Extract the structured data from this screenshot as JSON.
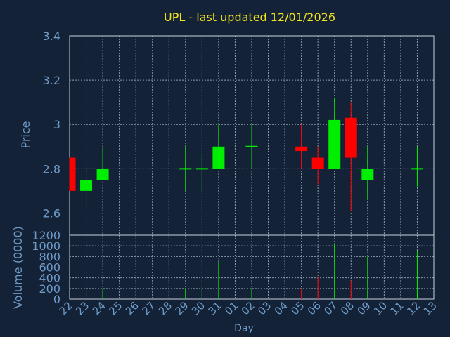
{
  "colors": {
    "background": "#132236",
    "text": "#6f9bc8",
    "title": "#f2e21f",
    "grid": "#8c9bb0",
    "axis": "#c8d2de",
    "up": "#00ee00",
    "down": "#ff0000"
  },
  "chart_data": [
    {
      "type": "candlestick",
      "title": "UPL - last updated 12/01/2026",
      "ylabel": "Price",
      "ylim": [
        2.5,
        3.4
      ],
      "yticks": [
        "2.6",
        "2.8",
        "3",
        "3.2",
        "3.4"
      ],
      "grid": true,
      "x": [
        "22",
        "23",
        "24",
        "25",
        "26",
        "27",
        "28",
        "29",
        "30",
        "31",
        "01",
        "02",
        "03",
        "04",
        "05",
        "06",
        "07",
        "08",
        "09",
        "10",
        "11",
        "12",
        "13"
      ],
      "candles": [
        {
          "x": "22",
          "open": 2.85,
          "high": 2.85,
          "low": 2.7,
          "close": 2.7
        },
        {
          "x": "23",
          "open": 2.7,
          "high": 2.8,
          "low": 2.63,
          "close": 2.75
        },
        {
          "x": "24",
          "open": 2.75,
          "high": 2.9,
          "low": 2.75,
          "close": 2.8
        },
        {
          "x": "29",
          "open": 2.8,
          "high": 2.9,
          "low": 2.7,
          "close": 2.8
        },
        {
          "x": "30",
          "open": 2.8,
          "high": 2.87,
          "low": 2.7,
          "close": 2.8
        },
        {
          "x": "31",
          "open": 2.8,
          "high": 3.0,
          "low": 2.8,
          "close": 2.9
        },
        {
          "x": "02",
          "open": 2.9,
          "high": 3.0,
          "low": 2.8,
          "close": 2.9
        },
        {
          "x": "05",
          "open": 2.9,
          "high": 3.0,
          "low": 2.8,
          "close": 2.88
        },
        {
          "x": "06",
          "open": 2.85,
          "high": 2.9,
          "low": 2.73,
          "close": 2.8
        },
        {
          "x": "07",
          "open": 2.8,
          "high": 3.12,
          "low": 2.8,
          "close": 3.02
        },
        {
          "x": "08",
          "open": 3.03,
          "high": 3.1,
          "low": 2.61,
          "close": 2.85
        },
        {
          "x": "09",
          "open": 2.75,
          "high": 2.9,
          "low": 2.66,
          "close": 2.8
        },
        {
          "x": "12",
          "open": 2.8,
          "high": 2.9,
          "low": 2.72,
          "close": 2.8
        }
      ]
    },
    {
      "type": "bar",
      "xlabel": "Day",
      "ylabel": "Volume (0000)",
      "ylim": [
        0,
        1200
      ],
      "yticks": [
        "0",
        "200",
        "400",
        "600",
        "800",
        "1000",
        "1200"
      ],
      "grid": true,
      "categories": [
        "22",
        "23",
        "24",
        "25",
        "26",
        "27",
        "28",
        "29",
        "30",
        "31",
        "01",
        "02",
        "03",
        "04",
        "05",
        "06",
        "07",
        "08",
        "09",
        "10",
        "11",
        "12",
        "13"
      ],
      "volumes": [
        {
          "x": "23",
          "value": 220,
          "direction": "up"
        },
        {
          "x": "24",
          "value": 180,
          "direction": "up"
        },
        {
          "x": "29",
          "value": 200,
          "direction": "up"
        },
        {
          "x": "30",
          "value": 230,
          "direction": "up"
        },
        {
          "x": "31",
          "value": 700,
          "direction": "up"
        },
        {
          "x": "02",
          "value": 210,
          "direction": "up"
        },
        {
          "x": "05",
          "value": 200,
          "direction": "down"
        },
        {
          "x": "06",
          "value": 410,
          "direction": "down"
        },
        {
          "x": "07",
          "value": 1050,
          "direction": "up"
        },
        {
          "x": "08",
          "value": 350,
          "direction": "down"
        },
        {
          "x": "09",
          "value": 800,
          "direction": "up"
        },
        {
          "x": "12",
          "value": 900,
          "direction": "up"
        }
      ]
    }
  ]
}
